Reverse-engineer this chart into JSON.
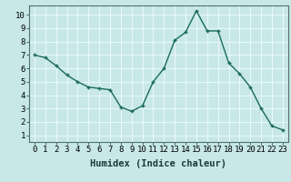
{
  "x": [
    0,
    1,
    2,
    3,
    4,
    5,
    6,
    7,
    8,
    9,
    10,
    11,
    12,
    13,
    14,
    15,
    16,
    17,
    18,
    19,
    20,
    21,
    22,
    23
  ],
  "y": [
    7.0,
    6.8,
    6.2,
    5.5,
    5.0,
    4.6,
    4.5,
    4.4,
    3.1,
    2.8,
    3.2,
    5.0,
    6.0,
    8.1,
    8.7,
    10.3,
    8.8,
    8.8,
    6.4,
    5.6,
    4.6,
    3.0,
    1.7,
    1.4
  ],
  "line_color": "#1a6b5a",
  "marker": "+",
  "bg_color": "#c8e8e8",
  "grid_color": "#e8f8f8",
  "xlabel": "Humidex (Indice chaleur)",
  "xlim": [
    -0.5,
    23.5
  ],
  "ylim": [
    0.5,
    10.7
  ],
  "yticks": [
    1,
    2,
    3,
    4,
    5,
    6,
    7,
    8,
    9,
    10
  ],
  "xticks": [
    0,
    1,
    2,
    3,
    4,
    5,
    6,
    7,
    8,
    9,
    10,
    11,
    12,
    13,
    14,
    15,
    16,
    17,
    18,
    19,
    20,
    21,
    22,
    23
  ],
  "tick_label_fontsize": 6.5,
  "xlabel_fontsize": 7.5
}
